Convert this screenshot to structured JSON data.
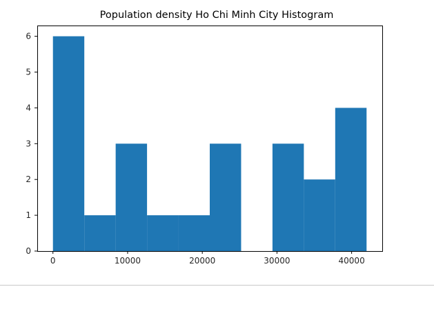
{
  "chart_data": {
    "type": "bar",
    "subtype": "histogram",
    "title": "Population density Ho Chi Minh City Histogram",
    "xlabel": "",
    "ylabel": "",
    "bin_edges": [
      0,
      4200,
      8400,
      12600,
      16800,
      21000,
      25200,
      29400,
      33600,
      37800,
      42000
    ],
    "values": [
      6,
      1,
      3,
      1,
      1,
      3,
      0,
      3,
      2,
      4
    ],
    "xlim": [
      -2100,
      44100
    ],
    "ylim": [
      0,
      6.3
    ],
    "xticks": [
      0,
      10000,
      20000,
      30000,
      40000
    ],
    "xtick_labels": [
      "0",
      "10000",
      "20000",
      "30000",
      "40000"
    ],
    "yticks": [
      0,
      1,
      2,
      3,
      4,
      5,
      6
    ],
    "ytick_labels": [
      "0",
      "1",
      "2",
      "3",
      "4",
      "5",
      "6"
    ],
    "grid": false,
    "legend": "none",
    "bar_color": "#1f77b4"
  }
}
